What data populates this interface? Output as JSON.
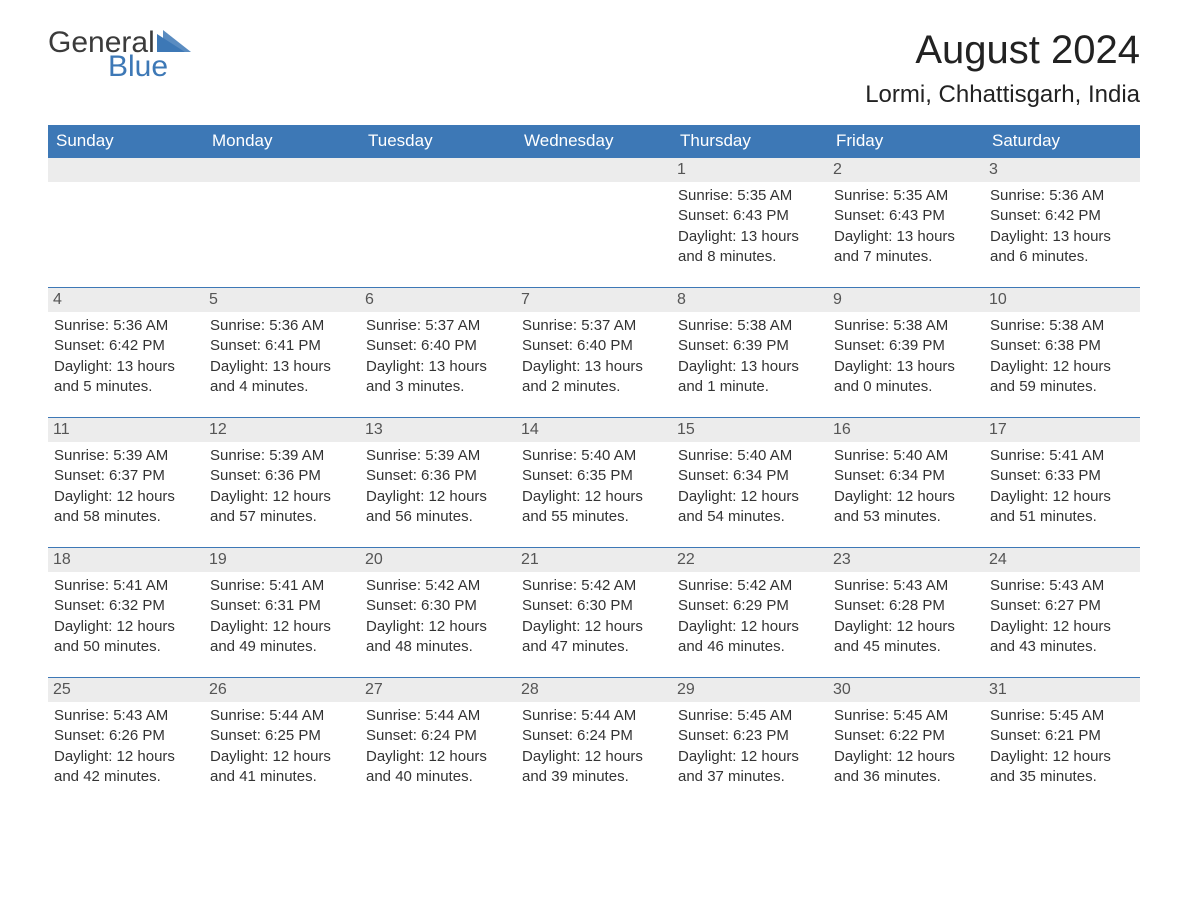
{
  "brand": {
    "general": "General",
    "blue": "Blue"
  },
  "title": "August 2024",
  "location": "Lormi, Chhattisgarh, India",
  "colors": {
    "header_bg": "#3d78b6",
    "header_text": "#ffffff",
    "date_bar_bg": "#ececec",
    "date_bar_border": "#3d78b6",
    "body_text": "#333333",
    "background": "#ffffff"
  },
  "calendar": {
    "type": "table",
    "columns": [
      "Sunday",
      "Monday",
      "Tuesday",
      "Wednesday",
      "Thursday",
      "Friday",
      "Saturday"
    ],
    "weeks": [
      [
        null,
        null,
        null,
        null,
        {
          "date": "1",
          "sunrise": "5:35 AM",
          "sunset": "6:43 PM",
          "daylight": "13 hours and 8 minutes."
        },
        {
          "date": "2",
          "sunrise": "5:35 AM",
          "sunset": "6:43 PM",
          "daylight": "13 hours and 7 minutes."
        },
        {
          "date": "3",
          "sunrise": "5:36 AM",
          "sunset": "6:42 PM",
          "daylight": "13 hours and 6 minutes."
        }
      ],
      [
        {
          "date": "4",
          "sunrise": "5:36 AM",
          "sunset": "6:42 PM",
          "daylight": "13 hours and 5 minutes."
        },
        {
          "date": "5",
          "sunrise": "5:36 AM",
          "sunset": "6:41 PM",
          "daylight": "13 hours and 4 minutes."
        },
        {
          "date": "6",
          "sunrise": "5:37 AM",
          "sunset": "6:40 PM",
          "daylight": "13 hours and 3 minutes."
        },
        {
          "date": "7",
          "sunrise": "5:37 AM",
          "sunset": "6:40 PM",
          "daylight": "13 hours and 2 minutes."
        },
        {
          "date": "8",
          "sunrise": "5:38 AM",
          "sunset": "6:39 PM",
          "daylight": "13 hours and 1 minute."
        },
        {
          "date": "9",
          "sunrise": "5:38 AM",
          "sunset": "6:39 PM",
          "daylight": "13 hours and 0 minutes."
        },
        {
          "date": "10",
          "sunrise": "5:38 AM",
          "sunset": "6:38 PM",
          "daylight": "12 hours and 59 minutes."
        }
      ],
      [
        {
          "date": "11",
          "sunrise": "5:39 AM",
          "sunset": "6:37 PM",
          "daylight": "12 hours and 58 minutes."
        },
        {
          "date": "12",
          "sunrise": "5:39 AM",
          "sunset": "6:36 PM",
          "daylight": "12 hours and 57 minutes."
        },
        {
          "date": "13",
          "sunrise": "5:39 AM",
          "sunset": "6:36 PM",
          "daylight": "12 hours and 56 minutes."
        },
        {
          "date": "14",
          "sunrise": "5:40 AM",
          "sunset": "6:35 PM",
          "daylight": "12 hours and 55 minutes."
        },
        {
          "date": "15",
          "sunrise": "5:40 AM",
          "sunset": "6:34 PM",
          "daylight": "12 hours and 54 minutes."
        },
        {
          "date": "16",
          "sunrise": "5:40 AM",
          "sunset": "6:34 PM",
          "daylight": "12 hours and 53 minutes."
        },
        {
          "date": "17",
          "sunrise": "5:41 AM",
          "sunset": "6:33 PM",
          "daylight": "12 hours and 51 minutes."
        }
      ],
      [
        {
          "date": "18",
          "sunrise": "5:41 AM",
          "sunset": "6:32 PM",
          "daylight": "12 hours and 50 minutes."
        },
        {
          "date": "19",
          "sunrise": "5:41 AM",
          "sunset": "6:31 PM",
          "daylight": "12 hours and 49 minutes."
        },
        {
          "date": "20",
          "sunrise": "5:42 AM",
          "sunset": "6:30 PM",
          "daylight": "12 hours and 48 minutes."
        },
        {
          "date": "21",
          "sunrise": "5:42 AM",
          "sunset": "6:30 PM",
          "daylight": "12 hours and 47 minutes."
        },
        {
          "date": "22",
          "sunrise": "5:42 AM",
          "sunset": "6:29 PM",
          "daylight": "12 hours and 46 minutes."
        },
        {
          "date": "23",
          "sunrise": "5:43 AM",
          "sunset": "6:28 PM",
          "daylight": "12 hours and 45 minutes."
        },
        {
          "date": "24",
          "sunrise": "5:43 AM",
          "sunset": "6:27 PM",
          "daylight": "12 hours and 43 minutes."
        }
      ],
      [
        {
          "date": "25",
          "sunrise": "5:43 AM",
          "sunset": "6:26 PM",
          "daylight": "12 hours and 42 minutes."
        },
        {
          "date": "26",
          "sunrise": "5:44 AM",
          "sunset": "6:25 PM",
          "daylight": "12 hours and 41 minutes."
        },
        {
          "date": "27",
          "sunrise": "5:44 AM",
          "sunset": "6:24 PM",
          "daylight": "12 hours and 40 minutes."
        },
        {
          "date": "28",
          "sunrise": "5:44 AM",
          "sunset": "6:24 PM",
          "daylight": "12 hours and 39 minutes."
        },
        {
          "date": "29",
          "sunrise": "5:45 AM",
          "sunset": "6:23 PM",
          "daylight": "12 hours and 37 minutes."
        },
        {
          "date": "30",
          "sunrise": "5:45 AM",
          "sunset": "6:22 PM",
          "daylight": "12 hours and 36 minutes."
        },
        {
          "date": "31",
          "sunrise": "5:45 AM",
          "sunset": "6:21 PM",
          "daylight": "12 hours and 35 minutes."
        }
      ]
    ],
    "labels": {
      "sunrise": "Sunrise:",
      "sunset": "Sunset:",
      "daylight": "Daylight:"
    }
  }
}
